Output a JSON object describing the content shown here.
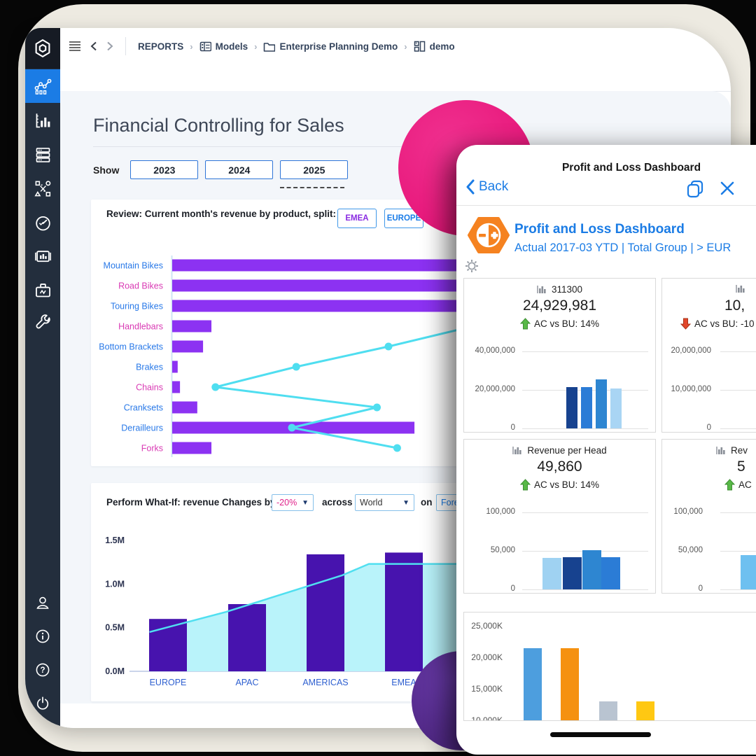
{
  "colors": {
    "accent_blue": "#1b7ce5",
    "sidebar_bg": "#232e3d",
    "sidebar_logo_bg": "#161b24",
    "sidebar_active": "#1b7ce5",
    "content_bg": "#f3f6fa",
    "frame_bg": "#edeae1",
    "pink_circle": "#e40e73",
    "purple_circle": "#532d8f",
    "product_bar_purple": "#8c32f2",
    "region_bar_indigo": "#4713ae",
    "cyan_line": "#4fdef0",
    "area_fill": "#b9f3fa",
    "orange_app_icon": "#f58220",
    "kpi_up_green": "#58b947",
    "kpi_down_red": "#e2472b"
  },
  "sidebar": {
    "top_items": [
      {
        "name": "app-logo"
      },
      {
        "name": "analytics",
        "active": true
      },
      {
        "name": "charts"
      },
      {
        "name": "data-sources"
      },
      {
        "name": "modeler"
      },
      {
        "name": "scheduler"
      },
      {
        "name": "presentations"
      },
      {
        "name": "toolbox"
      },
      {
        "name": "settings-wrench"
      }
    ],
    "bottom_items": [
      {
        "name": "user"
      },
      {
        "name": "info"
      },
      {
        "name": "help"
      },
      {
        "name": "power"
      }
    ]
  },
  "toolbar": {
    "breadcrumb": [
      {
        "label": "REPORTS",
        "icon": null
      },
      {
        "label": "Models",
        "icon": "models-icon"
      },
      {
        "label": "Enterprise Planning Demo",
        "icon": "folder-icon"
      },
      {
        "label": "demo",
        "icon": "report-icon"
      }
    ]
  },
  "desktop": {
    "page_title": "Financial Controlling for Sales",
    "show_label": "Show",
    "year_tabs": [
      {
        "label": "2023",
        "selected": false
      },
      {
        "label": "2024",
        "selected": false
      },
      {
        "label": "2025",
        "selected": true
      }
    ],
    "review_header": "Review: Current month's revenue by product, split:",
    "region_buttons": [
      {
        "label": "EMEA",
        "text_color": "#8a2be2"
      },
      {
        "label": "EUROPE",
        "text_color": "#1a7ce8"
      }
    ],
    "whatif": {
      "prefix": "Perform What-If: revenue Changes by",
      "percent_value": "-20%",
      "across_label": "across",
      "region_value": "World",
      "on_label": "on",
      "version_value": "Fore"
    }
  },
  "mobile": {
    "nav_title": "Profit and Loss Dashboard",
    "back_label": "Back",
    "app_title": "Profit and Loss Dashboard",
    "app_subtitle": "Actual 2017-03 YTD | Total Group | > EUR"
  },
  "chart_data": [
    {
      "id": "revenue-by-product",
      "type": "bar",
      "subtype": "horizontal-bars-with-line",
      "categories": [
        "Mountain Bikes",
        "Road Bikes",
        "Touring Bikes",
        "Handlebars",
        "Bottom Brackets",
        "Brakes",
        "Chains",
        "Cranksets",
        "Derailleurs",
        "Forks"
      ],
      "bar_values_pct": [
        100,
        100,
        100,
        13.6,
        10.7,
        1.9,
        2.7,
        8.7,
        84,
        13.6
      ],
      "label_colors": [
        "#2979e8",
        "#d93bb4",
        "#2979e8",
        "#d93bb4",
        "#2979e8",
        "#2979e8",
        "#d93bb4",
        "#2979e8",
        "#2979e8",
        "#d93bb4"
      ],
      "line_points": [
        {
          "row": 3.15,
          "pct": 100
        },
        {
          "row": 4,
          "pct": 75
        },
        {
          "row": 5,
          "pct": 43
        },
        {
          "row": 6,
          "pct": 15
        },
        {
          "row": 7,
          "pct": 71
        },
        {
          "row": 8,
          "pct": 41.5
        },
        {
          "row": 9,
          "pct": 78
        }
      ],
      "bar_color": "#8c32f2",
      "line_color": "#4fdef0",
      "note": "axis unlabeled; top three bars and line clipped by overlay panel"
    },
    {
      "id": "whatif-revenue-by-region",
      "type": "bar",
      "subtype": "bars-with-area",
      "categories": [
        "EUROPE",
        "APAC",
        "AMERICAS",
        "EMEA"
      ],
      "bar_values_M": [
        0.6,
        0.77,
        1.34,
        1.36
      ],
      "area_profile": [
        [
          0.06,
          0.45
        ],
        [
          0.29,
          0.68
        ],
        [
          0.64,
          1.1
        ],
        [
          0.72,
          1.23
        ],
        [
          1.0,
          1.23
        ]
      ],
      "yticks": [
        "0.0M",
        "0.5M",
        "1.0M",
        "1.5M"
      ],
      "ymax_M": 1.5,
      "bar_color": "#4713ae",
      "area_fill": "#b9f3fa",
      "line_color": "#50dff0"
    },
    {
      "id": "kpi-311300",
      "type": "bar",
      "title": "311300",
      "value": "24,929,981",
      "delta_direction": "up",
      "delta_label": "AC vs BU: 14%",
      "yticks": [
        "40,000,000",
        "20,000,000",
        "0"
      ],
      "ymax": 40000000,
      "bars": [
        {
          "value": 21300000,
          "color": "#17428f"
        },
        {
          "value": 21300000,
          "color": "#2b7cd6"
        },
        {
          "value": 25500000,
          "color": "#2e86d1"
        },
        {
          "value": 20800000,
          "color": "#a9d5f4"
        }
      ]
    },
    {
      "id": "kpi-clipped-top-right",
      "type": "bar",
      "title": "",
      "value": "10,",
      "delta_direction": "down",
      "delta_label": "AC vs BU: -10",
      "yticks": [
        "20,000,000",
        "10,000,000",
        "0"
      ],
      "ymax": 20000000,
      "bars": [],
      "note": "card clipped by screenshot right edge"
    },
    {
      "id": "kpi-revenue-per-head",
      "type": "bar",
      "title": "Revenue per Head",
      "value": "49,860",
      "delta_direction": "up",
      "delta_label": "AC vs BU: 14%",
      "yticks": [
        "100,000",
        "50,000",
        "0"
      ],
      "ymax": 100000,
      "bars": [
        {
          "value": 41000,
          "color": "#9fd2f2"
        },
        {
          "value": 42000,
          "color": "#17428f"
        },
        {
          "value": 51000,
          "color": "#2e86d1"
        },
        {
          "value": 42000,
          "color": "#2b7cd6"
        }
      ]
    },
    {
      "id": "kpi-clipped-bottom-right",
      "type": "bar",
      "title": "Rev",
      "value": "5",
      "delta_direction": "up",
      "delta_label": "AC",
      "yticks": [
        "100,000",
        "50,000",
        "0"
      ],
      "ymax": 100000,
      "bars": [
        {
          "value": 45000,
          "color": "#6ec0f0"
        }
      ],
      "note": "card clipped by screenshot right edge"
    },
    {
      "id": "mobile-bottom-bars",
      "type": "bar",
      "yticks": [
        "25,000K",
        "20,000K",
        "15,000K",
        "10,000K"
      ],
      "values_K": [
        21500,
        21500,
        13000,
        13000
      ],
      "colors": [
        "#4d9ede",
        "#f59110",
        "#b9c4d1",
        "#ffc812"
      ],
      "note": "baseline clipped at panel bottom edge"
    }
  ]
}
